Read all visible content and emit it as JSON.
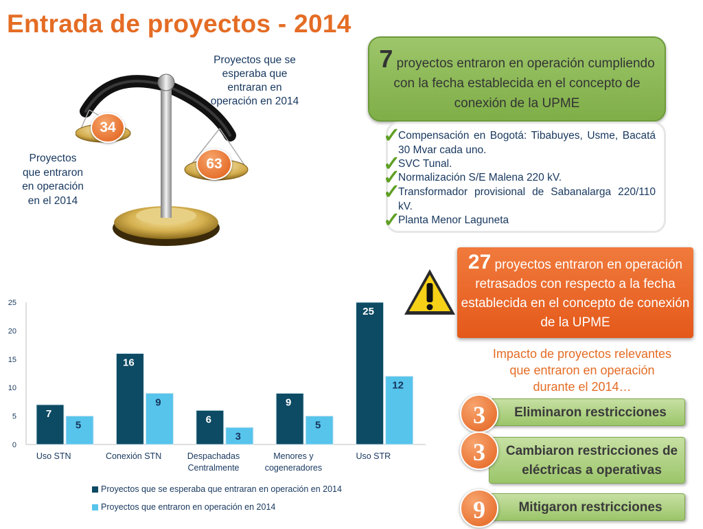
{
  "title": "Entrada de proyectos - 2014",
  "scale": {
    "label_expected": "Proyectos que se esperaba que entraran en operación en 2014",
    "label_entered": "Proyectos que entraron en operación en el 2014",
    "value_entered": "34",
    "value_expected": "63"
  },
  "on_time": {
    "count": "7",
    "text": "proyectos entraron en operación cumpliendo con la fecha establecida en el concepto de conexión de la UPME",
    "items": [
      "Compensación en Bogotá: Tibabuyes, Usme, Bacatá 30 Mvar cada uno.",
      "SVC Tunal.",
      "Normalización S/E Malena 220 kV.",
      "Transformador provisional de Sabanalarga 220/110 kV.",
      "Planta Menor Laguneta"
    ]
  },
  "delayed": {
    "count": "27",
    "text": "proyectos entraron en operación retrasados con respecto a la fecha establecida en el concepto de conexión de la UPME"
  },
  "impact": {
    "title": "Impacto de proyectos relevantes que entraron en operación durante el 2014…",
    "items": [
      {
        "count": "3",
        "label": "Eliminaron restricciones"
      },
      {
        "count": "3",
        "label": "Cambiaron restricciones de eléctricas a operativas"
      },
      {
        "count": "9",
        "label": "Mitigaron restricciones"
      }
    ]
  },
  "colors": {
    "title": "#e46c24",
    "series_expected": "#0d4a63",
    "series_entered": "#57c4ec",
    "green_box": "#8ab955",
    "orange_box": "#e9621f"
  },
  "chart_data": {
    "type": "bar",
    "categories": [
      "Uso STN",
      "Conexión STN",
      "Despachadas Centralmente",
      "Menores y cogeneradores",
      "Uso STR"
    ],
    "category_lines": [
      [
        "Uso STN"
      ],
      [
        "Conexión STN"
      ],
      [
        "Despachadas",
        "Centralmente"
      ],
      [
        "Menores y",
        "cogeneradores"
      ],
      [
        "Uso STR"
      ]
    ],
    "series": [
      {
        "name": "Proyectos que se esperaba que entraran en operación en 2014",
        "values": [
          7,
          16,
          6,
          9,
          25
        ]
      },
      {
        "name": "Proyectos que entraron en operación en 2014",
        "values": [
          5,
          9,
          3,
          5,
          12
        ]
      }
    ],
    "ylim": [
      0,
      25
    ],
    "yticks": [
      0,
      5,
      10,
      15,
      20,
      25
    ],
    "legend": "bottom"
  }
}
